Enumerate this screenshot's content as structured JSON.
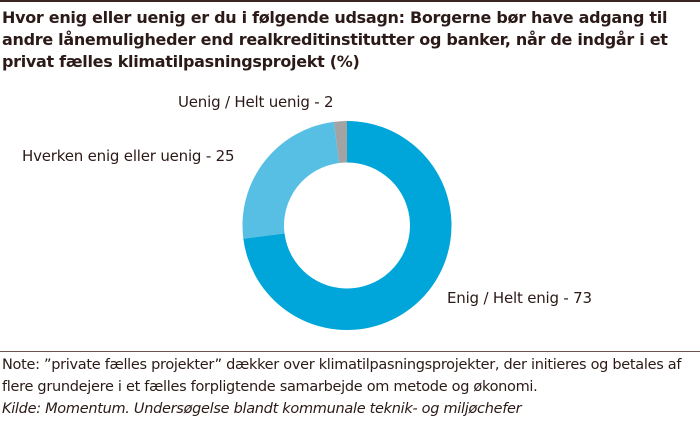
{
  "chart_data": {
    "type": "pie",
    "donut": true,
    "title": "Hvor enig eller uenig er du i følgende udsagn: Borgerne bør have adgang til andre lånemuligheder end realkreditinstitutter og banker, når de indgår i et privat fælles klimatilpasningsprojekt (%)",
    "slices": [
      {
        "label": "Enig / Helt enig - 73",
        "value": 73,
        "color": "#00a5d9"
      },
      {
        "label": "Hverken enig eller uenig - 25",
        "value": 25,
        "color": "#56bfe3"
      },
      {
        "label": "Uenig / Helt uenig - 2",
        "value": 2,
        "color": "#a3a3a3"
      }
    ]
  },
  "note": "Note: ”private fælles projekter” dækker over klimatilpasningsprojekter, der initieres og betales af flere grundejere i et fælles forpligtende samarbejde om metode og økonomi.",
  "source": "Kilde: Momentum. Undersøgelse blandt kommunale teknik- og miljøchefer"
}
